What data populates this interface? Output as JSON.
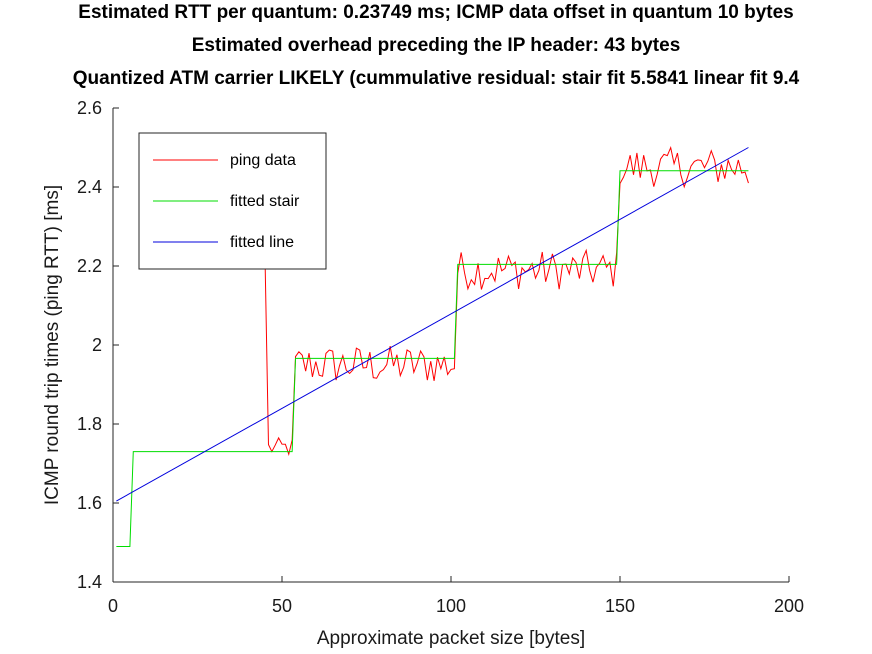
{
  "chart_data": {
    "type": "line",
    "title_lines": [
      "Estimated RTT per quantum: 0.23749 ms; ICMP data offset in quantum 10 bytes",
      "Estimated overhead preceding the IP header: 43 bytes",
      "Quantized ATM carrier LIKELY (cummulative residual: stair fit 5.5841 linear fit 9.4"
    ],
    "xlabel": "Approximate packet size [bytes]",
    "ylabel": "ICMP round trip times (ping RTT) [ms]",
    "xlim": [
      0,
      200
    ],
    "ylim": [
      1.4,
      2.6
    ],
    "x_ticks": [
      0,
      50,
      100,
      150,
      200
    ],
    "x_tick_labels": [
      "0",
      "50",
      "100",
      "150",
      "200"
    ],
    "y_ticks": [
      1.4,
      1.6,
      1.8,
      2.0,
      2.2,
      2.4,
      2.6
    ],
    "y_tick_labels": [
      "1.4",
      "1.6",
      "1.8",
      "2",
      "2.2",
      "2.4",
      "2.6"
    ],
    "grid": false,
    "legend_position": "top-left",
    "series": [
      {
        "name": "ping data",
        "color": "#ff0000",
        "kind": "noisy-steps",
        "x_start": 45,
        "x_end": 188,
        "x_step": 1,
        "initial_spike_value": 2.21,
        "levels": [
          {
            "x_from": 45,
            "x_to": 53,
            "mean": 1.74,
            "spread": 0.025
          },
          {
            "x_from": 53,
            "x_to": 101,
            "mean": 1.95,
            "spread": 0.05
          },
          {
            "x_from": 101,
            "x_to": 149,
            "mean": 2.19,
            "spread": 0.05
          },
          {
            "x_from": 149,
            "x_to": 188,
            "mean": 2.45,
            "spread": 0.05
          }
        ],
        "max_value": 2.55,
        "final_value": 2.41
      },
      {
        "name": "fitted stair",
        "color": "#00dd00",
        "kind": "stair",
        "points": [
          [
            1,
            1.49
          ],
          [
            5,
            1.49
          ],
          [
            6,
            1.73
          ],
          [
            53,
            1.73
          ],
          [
            54,
            1.966
          ],
          [
            101,
            1.966
          ],
          [
            102,
            2.204
          ],
          [
            149,
            2.204
          ],
          [
            150,
            2.441
          ],
          [
            188,
            2.441
          ]
        ]
      },
      {
        "name": "fitted line",
        "color": "#0000dd",
        "kind": "line",
        "points": [
          [
            1,
            1.605
          ],
          [
            188,
            2.5
          ]
        ]
      }
    ]
  }
}
